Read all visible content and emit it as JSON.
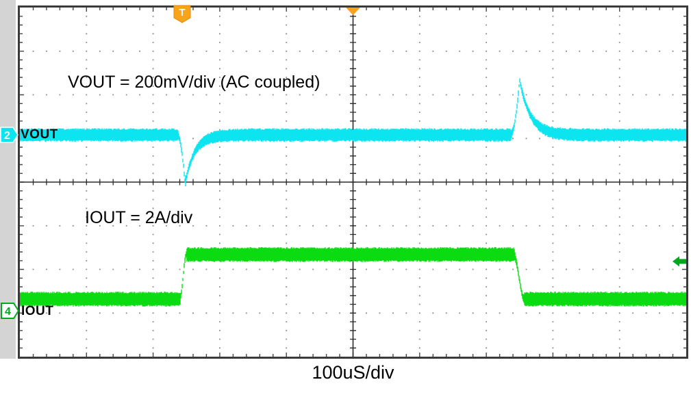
{
  "scope": {
    "timebase_label": "100uS/div",
    "trigger": {
      "badge": "T",
      "color": "#F9A21B"
    },
    "channels": [
      {
        "number": "2",
        "label": "VOUT",
        "annotation": "VOUT = 200mV/div (AC coupled)",
        "color": "#0CE4EF",
        "scale": "200mV/div",
        "coupling": "AC"
      },
      {
        "number": "4",
        "label": "IOUT",
        "annotation": "IOUT = 2A/div",
        "color": "#0BDC12",
        "scale": "2A/div"
      }
    ],
    "reference_arrow_color": "#00A81E"
  },
  "chart_data": {
    "type": "line",
    "xlabel": "100uS/div",
    "x": {
      "divisions": 10,
      "minor_per_div": 5,
      "us_per_div": 100
    },
    "y": {
      "divisions": 8,
      "minor_per_div": 5
    },
    "grid": {
      "style": "dotted-divisions with solid center crosshair",
      "dot_color": "#8a8a8a"
    },
    "series": [
      {
        "name": "VOUT",
        "channel": 2,
        "color": "#0CE4EF",
        "scale_per_div": "200mV",
        "coupling": "AC",
        "baseline_div": 2.92,
        "baseline_mV": 0,
        "noise_halfband_div": 0.115,
        "events": [
          {
            "type": "undershoot",
            "t_start_div": 2.36,
            "t_min_div": 2.48,
            "depth_div": 1.12,
            "depth_mV": -224,
            "recover_tau_div": 0.14
          },
          {
            "type": "overshoot",
            "t_start_div": 7.36,
            "t_peak_div": 7.5,
            "height_div": 1.26,
            "height_mV": 252,
            "decay_tau_div": 0.16
          }
        ]
      },
      {
        "name": "IOUT",
        "channel": 4,
        "color": "#0BDC12",
        "scale_per_div": "2A",
        "low_div": 6.68,
        "high_div": 5.66,
        "step_A": 2,
        "noise_halfband_div": 0.13,
        "rise": {
          "t0_div": 2.4,
          "t1_div": 2.5
        },
        "fall": {
          "t0_div": 7.41,
          "t1_div": 7.57
        }
      }
    ],
    "trigger": {
      "time_marker_div": 2.44,
      "horizontal_position_div": 5
    }
  }
}
